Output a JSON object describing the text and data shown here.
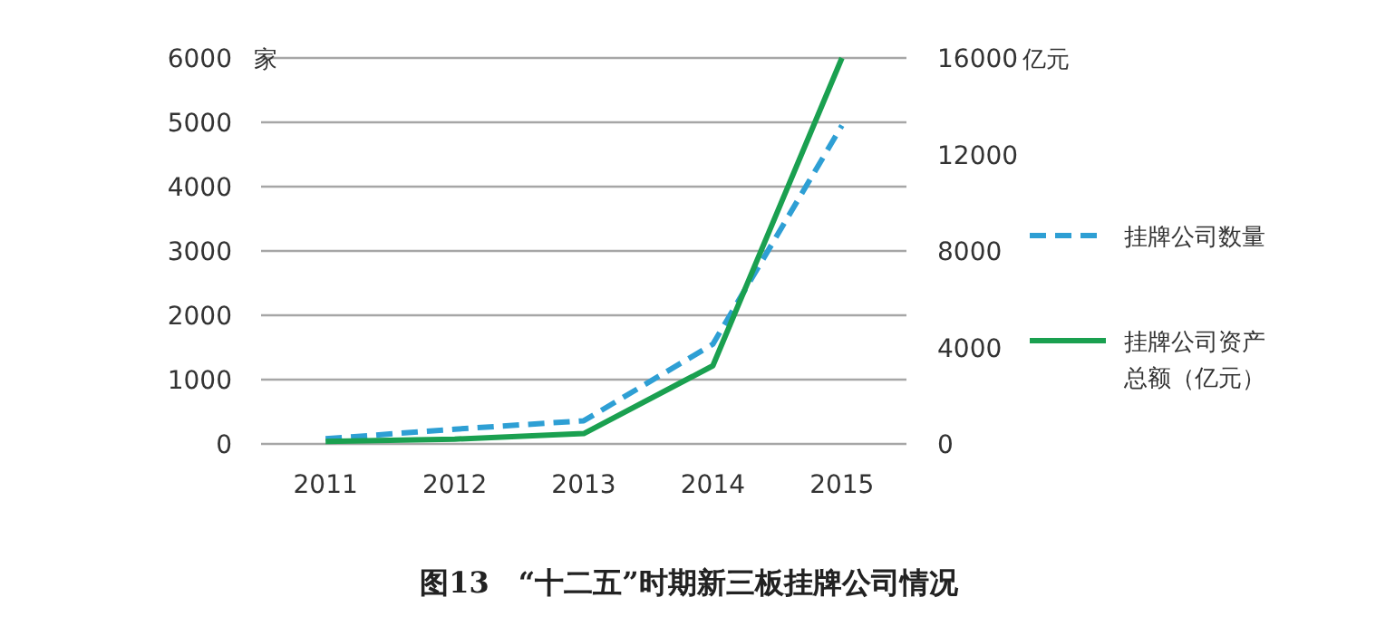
{
  "chart_data": {
    "type": "line",
    "title": "图13　“十二五”时期新三板挂牌公司情况",
    "ylabel": "家",
    "y2label": "亿元",
    "categories": [
      "2011",
      "2012",
      "2013",
      "2014",
      "2015"
    ],
    "series": [
      {
        "name": "挂牌公司数量",
        "color": "#2e9fd4",
        "line_style": "dashed",
        "values": [
          80,
          230,
          360,
          1550,
          4950
        ]
      },
      {
        "name": "挂牌公司资产总额（亿元）",
        "color": "#1aa050",
        "line_style": "solid",
        "axis": "y2",
        "values": [
          100,
          200,
          430,
          3240,
          16000
        ]
      }
    ],
    "ylim": [
      0,
      6000
    ],
    "yticks": [
      0,
      1000,
      2000,
      3000,
      4000,
      5000,
      6000
    ],
    "y2lim": [
      0,
      16000
    ],
    "y2ticks": [
      0,
      4000,
      8000,
      12000,
      16000
    ],
    "grid": "y",
    "legend": "right",
    "marker": "none"
  }
}
